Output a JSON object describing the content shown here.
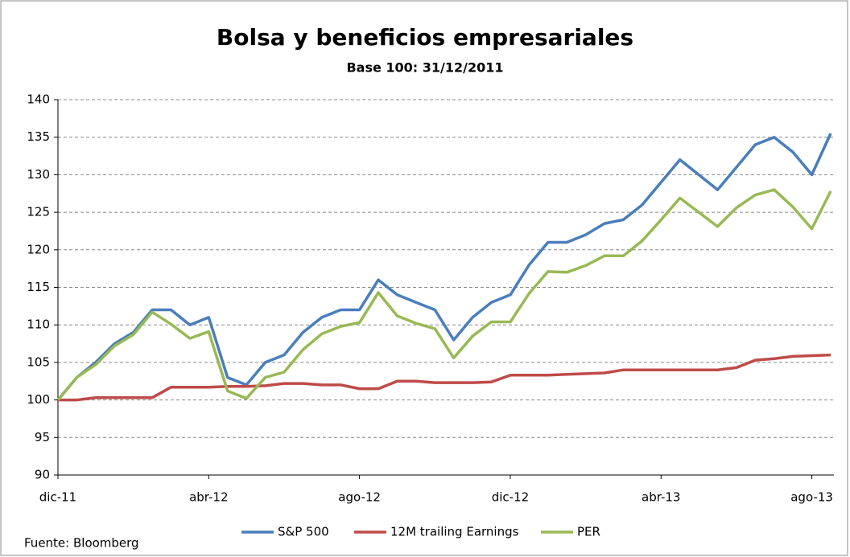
{
  "chart_data": {
    "type": "line",
    "title": "Bolsa y beneficios empresariales",
    "subtitle": "Base 100: 31/12/2011",
    "source": "Fuente: Bloomberg",
    "categories": [
      "dic-11",
      null,
      null,
      null,
      null,
      null,
      null,
      null,
      "abr-12",
      null,
      null,
      null,
      null,
      null,
      null,
      null,
      "ago-12",
      null,
      null,
      null,
      null,
      null,
      null,
      null,
      "dic-12",
      null,
      null,
      null,
      null,
      null,
      null,
      null,
      "abr-13",
      null,
      null,
      null,
      null,
      null,
      null,
      null,
      "ago-13",
      null
    ],
    "series": [
      {
        "name": "S&P 500",
        "color": "#4a7ebb",
        "values": [
          100,
          103,
          105,
          107.5,
          109,
          112,
          112,
          110,
          111,
          103,
          102,
          105,
          106,
          109,
          111,
          112,
          112,
          116,
          114,
          113,
          112,
          108,
          111,
          113,
          114,
          118,
          121,
          121,
          122,
          123.5,
          124,
          126,
          129,
          132,
          130,
          128,
          131,
          134,
          135,
          133,
          130,
          135.5
        ]
      },
      {
        "name": "12M trailing Earnings",
        "color": "#be4b48",
        "values": [
          100,
          100,
          100.3,
          100.3,
          100.3,
          100.3,
          101.7,
          101.7,
          101.7,
          101.8,
          101.8,
          101.9,
          102.2,
          102.2,
          102,
          102,
          101.5,
          101.5,
          102.5,
          102.5,
          102.3,
          102.3,
          102.3,
          102.4,
          103.3,
          103.3,
          103.3,
          103.4,
          103.5,
          103.6,
          104,
          104,
          104,
          104,
          104,
          104,
          104.3,
          105.3,
          105.5,
          105.8,
          105.9,
          106
        ]
      },
      {
        "name": "PER",
        "color": "#98b954",
        "values": [
          100,
          103,
          104.7,
          107.2,
          108.7,
          111.7,
          110.1,
          108.2,
          109.1,
          101.2,
          100.2,
          103,
          103.7,
          106.7,
          108.8,
          109.8,
          110.3,
          114.3,
          111.2,
          110.2,
          109.5,
          105.6,
          108.5,
          110.4,
          110.4,
          114.2,
          117.1,
          117,
          117.9,
          119.2,
          119.2,
          121.2,
          124,
          126.9,
          125,
          123.1,
          125.6,
          127.3,
          128,
          125.7,
          122.8,
          127.8
        ]
      }
    ],
    "ylim": [
      90,
      140
    ],
    "yticks": [
      90,
      95,
      100,
      105,
      110,
      115,
      120,
      125,
      130,
      135,
      140
    ],
    "grid": true
  }
}
